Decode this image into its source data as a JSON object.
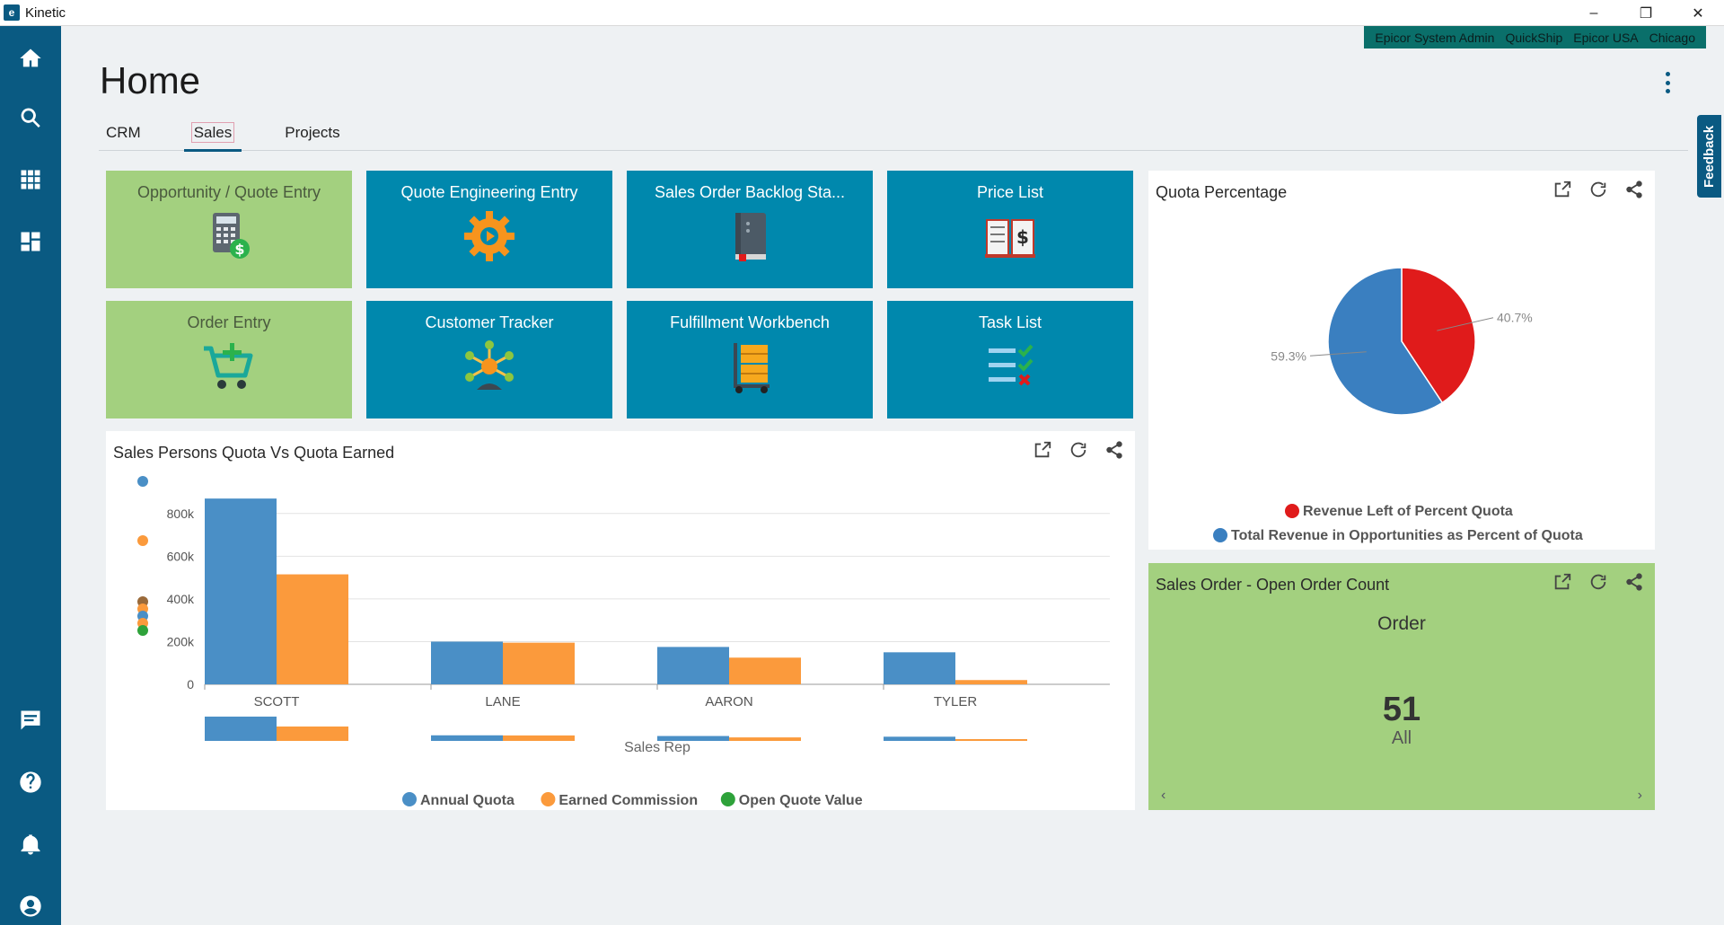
{
  "window": {
    "title": "Kinetic",
    "controls": [
      "–",
      "❐",
      "✕"
    ]
  },
  "context": [
    "Epicor System Admin",
    "QuickShip",
    "Epicor USA",
    "Chicago"
  ],
  "page": {
    "title": "Home"
  },
  "tabs": [
    "CRM",
    "Sales",
    "Projects"
  ],
  "active_tab": "Sales",
  "feedback_label": "Feedback",
  "tiles": [
    {
      "label": "Opportunity / Quote Entry",
      "color": "#a3d07f",
      "icon": "calculator-icon"
    },
    {
      "label": "Quote Engineering Entry",
      "color": "#0088ad",
      "icon": "gear-icon"
    },
    {
      "label": "Sales Order Backlog Sta...",
      "color": "#0088ad",
      "icon": "book-icon"
    },
    {
      "label": "Price List",
      "color": "#0088ad",
      "icon": "price-book-icon"
    },
    {
      "label": "Order Entry",
      "color": "#a3d07f",
      "icon": "cart-icon"
    },
    {
      "label": "Customer Tracker",
      "color": "#0088ad",
      "icon": "network-icon"
    },
    {
      "label": "Fulfillment Workbench",
      "color": "#0088ad",
      "icon": "hand-truck-icon"
    },
    {
      "label": "Task List",
      "color": "#0088ad",
      "icon": "task-list-icon"
    }
  ],
  "bar_card": {
    "title": "Sales Persons Quota Vs Quota Earned"
  },
  "pie_card": {
    "title": "Quota Percentage"
  },
  "order_card": {
    "title": "Sales Order - Open Order Count",
    "heading": "Order",
    "count": "51",
    "filter": "All"
  },
  "chart_data": [
    {
      "type": "bar",
      "title": "Sales Persons Quota Vs Quota Earned",
      "xlabel": "Sales Rep",
      "categories": [
        "SCOTT",
        "LANE",
        "AARON",
        "TYLER"
      ],
      "series": [
        {
          "name": "Annual Quota",
          "color": "#4a8fc6",
          "values": [
            870000,
            200000,
            175000,
            150000
          ]
        },
        {
          "name": "Earned Commission",
          "color": "#fb9a3c",
          "values": [
            515000,
            195000,
            125000,
            20000
          ]
        },
        {
          "name": "Open Quote Value",
          "color": "#2ea23a",
          "values": [
            0,
            0,
            0,
            0
          ]
        }
      ],
      "ylim": [
        0,
        900000
      ],
      "yticks": [
        0,
        200000,
        400000,
        600000,
        800000
      ],
      "ytick_labels": [
        "0",
        "200k",
        "400k",
        "600k",
        "800k"
      ],
      "legend": "bottom"
    },
    {
      "type": "pie",
      "title": "Quota Percentage",
      "slices": [
        {
          "name": "Revenue Left of Percent Quota",
          "value": 40.7,
          "label": "40.7%",
          "color": "#e01b1b"
        },
        {
          "name": "Total Revenue in Opportunities as Percent of Quota",
          "value": 59.3,
          "label": "59.3%",
          "color": "#3a7fc0"
        }
      ],
      "legend": "bottom"
    }
  ]
}
